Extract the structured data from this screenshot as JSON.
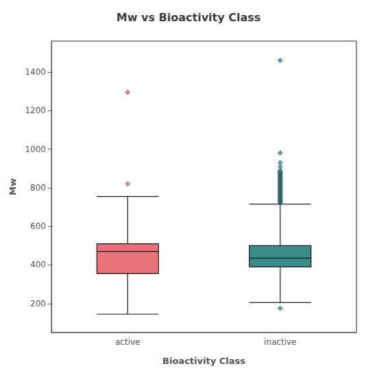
{
  "chart_data": {
    "type": "box",
    "title": "Mw vs Bioactivity Class",
    "xlabel": "Bioactivity Class",
    "ylabel": "Mw",
    "categories": [
      "active",
      "inactive"
    ],
    "boxes": [
      {
        "q1": 355,
        "median": 470,
        "q3": 510,
        "whisker_low": 145,
        "whisker_high": 755,
        "fliers": [
          820,
          1295
        ]
      },
      {
        "q1": 390,
        "median": 435,
        "q3": 500,
        "whisker_low": 205,
        "whisker_high": 715,
        "fliers": [
          175,
          720,
          725,
          730,
          735,
          740,
          745,
          750,
          755,
          760,
          765,
          770,
          775,
          780,
          785,
          790,
          795,
          800,
          805,
          810,
          815,
          820,
          825,
          830,
          835,
          840,
          845,
          850,
          855,
          860,
          865,
          870,
          875,
          880,
          885,
          890,
          910,
          930,
          980,
          1460
        ]
      }
    ],
    "colors": [
      "#E8727A",
      "#3D8C8C"
    ],
    "marker": "diamond",
    "ylim": [
      50,
      1560
    ],
    "yticks": [
      200,
      400,
      600,
      800,
      1000,
      1200,
      1400
    ],
    "grid": false
  }
}
